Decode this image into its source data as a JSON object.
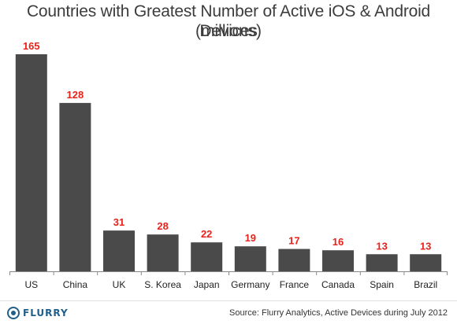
{
  "chart_data": {
    "type": "bar",
    "title": "Countries with Greatest Number of Active iOS & Android Devices",
    "subtitle": "(millions)",
    "categories": [
      "US",
      "China",
      "UK",
      "S. Korea",
      "Japan",
      "Germany",
      "France",
      "Canada",
      "Spain",
      "Brazil"
    ],
    "values": [
      165,
      128,
      31,
      28,
      22,
      19,
      17,
      16,
      13,
      13
    ],
    "xlabel": "",
    "ylabel": "",
    "ylim": [
      0,
      165
    ],
    "grid": false,
    "legend": "none",
    "bar_color": "#4a4a4a",
    "value_label_color": "#e8221b"
  },
  "footer": {
    "logo_text": "FLURRY",
    "source": "Source: Flurry Analytics, Active Devices during July 2012"
  },
  "colors": {
    "title": "#3c3c3c",
    "axis": "#888888",
    "brand": "#1f5f8b"
  }
}
